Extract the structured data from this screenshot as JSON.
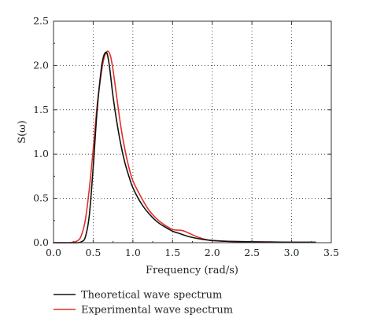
{
  "chart_data": {
    "type": "line",
    "title": "",
    "xlabel": "Frequency (rad/s)",
    "ylabel": "S(ω)",
    "xlim": [
      0,
      3.5
    ],
    "ylim": [
      0,
      2.5
    ],
    "xticks": [
      "0.0",
      "0.5",
      "1.0",
      "1.5",
      "2.0",
      "2.5",
      "3.0",
      "3.5"
    ],
    "yticks": [
      "0.0",
      "0.5",
      "1.0",
      "1.5",
      "2.0",
      "2.5"
    ],
    "grid": true,
    "grid_style": "dotted",
    "legend_position": "below",
    "series": [
      {
        "name": "Theoretical wave spectrum",
        "color": "#111111",
        "x": [
          0.0,
          0.2,
          0.3,
          0.35,
          0.4,
          0.45,
          0.5,
          0.55,
          0.6,
          0.63,
          0.66,
          0.68,
          0.7,
          0.72,
          0.75,
          0.8,
          0.85,
          0.9,
          0.95,
          1.0,
          1.1,
          1.2,
          1.3,
          1.4,
          1.5,
          1.6,
          1.7,
          1.8,
          1.9,
          2.0,
          2.2,
          2.5,
          3.0,
          3.3
        ],
        "y": [
          0.0,
          0.0,
          0.0,
          0.01,
          0.06,
          0.3,
          0.85,
          1.5,
          1.95,
          2.1,
          2.15,
          2.12,
          2.02,
          1.88,
          1.65,
          1.35,
          1.1,
          0.9,
          0.75,
          0.62,
          0.45,
          0.33,
          0.24,
          0.18,
          0.13,
          0.1,
          0.07,
          0.05,
          0.035,
          0.025,
          0.015,
          0.01,
          0.005,
          0.005
        ]
      },
      {
        "name": "Experimental wave spectrum",
        "color": "#e0302a",
        "x": [
          0.0,
          0.2,
          0.3,
          0.35,
          0.4,
          0.45,
          0.5,
          0.55,
          0.6,
          0.63,
          0.66,
          0.69,
          0.72,
          0.75,
          0.8,
          0.85,
          0.9,
          0.95,
          1.0,
          1.1,
          1.2,
          1.3,
          1.4,
          1.5,
          1.6,
          1.65,
          1.7,
          1.8,
          1.9,
          2.0,
          2.2,
          2.5,
          3.0,
          3.3
        ],
        "y": [
          0.0,
          0.0,
          0.02,
          0.08,
          0.25,
          0.6,
          1.05,
          1.55,
          1.9,
          2.06,
          2.14,
          2.16,
          2.1,
          1.95,
          1.62,
          1.3,
          1.05,
          0.85,
          0.7,
          0.52,
          0.37,
          0.27,
          0.2,
          0.15,
          0.14,
          0.13,
          0.11,
          0.07,
          0.04,
          0.025,
          0.015,
          0.01,
          0.005,
          0.005
        ]
      }
    ]
  }
}
